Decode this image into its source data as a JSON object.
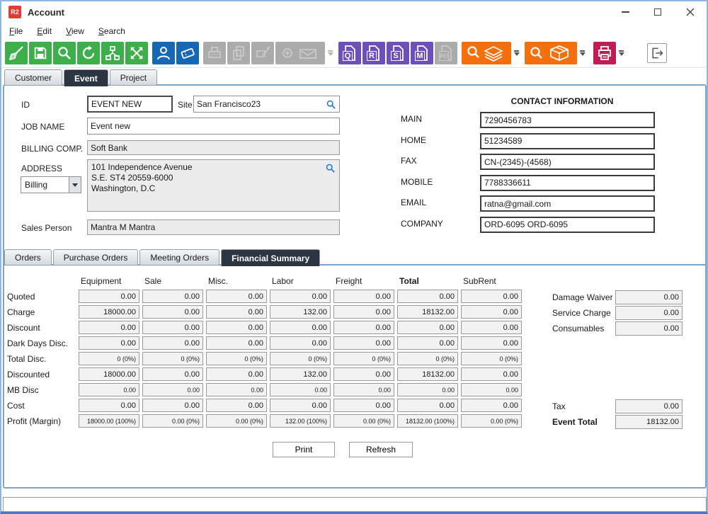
{
  "window": {
    "logo": "R2",
    "title": "Account"
  },
  "menu": {
    "items": [
      "File",
      "Edit",
      "View",
      "Search"
    ]
  },
  "toolbar": {
    "doc_letters": {
      "q": "Q",
      "r": "R",
      "s": "S",
      "m": "M",
      "po": "PO"
    },
    "icons": [
      "sweep",
      "save",
      "search",
      "refresh",
      "hierarchy",
      "expand",
      "user",
      "ticket",
      "fax",
      "copy",
      "sign",
      "add-mail",
      "quote-doc",
      "reservation-doc",
      "show-doc",
      "meeting-doc",
      "po-doc",
      "search-stock",
      "search-package",
      "print",
      "exit"
    ]
  },
  "tabs": {
    "items": [
      "Customer",
      "Event",
      "Project"
    ],
    "active": "Event"
  },
  "form": {
    "id": {
      "label": "ID",
      "value": "EVENT NEW"
    },
    "site": {
      "label": "Site",
      "value": "San Francisco23"
    },
    "job_name": {
      "label": "JOB NAME",
      "value": "Event new"
    },
    "billing_comp": {
      "label": "BILLING COMP.",
      "value": "Soft Bank"
    },
    "address": {
      "label": "ADDRESS",
      "type_value": "Billing",
      "lines": [
        "101 Independence Avenue",
        "S.E. ST4 20559-6000",
        "Washington, D.C"
      ]
    },
    "sales_person": {
      "label": "Sales Person",
      "value": "Mantra M Mantra"
    }
  },
  "contact": {
    "title": "CONTACT INFORMATION",
    "rows": [
      {
        "label": "MAIN",
        "value": "7290456783"
      },
      {
        "label": "HOME",
        "value": "51234589"
      },
      {
        "label": "FAX",
        "value": "CN-(2345)-(4568)"
      },
      {
        "label": "MOBILE",
        "value": "7788336611"
      },
      {
        "label": "EMAIL",
        "value": "ratna@gmail.com"
      },
      {
        "label": "COMPANY",
        "value": "ORD-6095 ORD-6095"
      }
    ]
  },
  "subtabs": {
    "items": [
      "Orders",
      "Purchase Orders",
      "Meeting Orders",
      "Financial Summary"
    ],
    "active": "Financial Summary"
  },
  "financial": {
    "columns": [
      "Equipment",
      "Sale",
      "Misc.",
      "Labor",
      "Freight",
      "Total",
      "SubRent"
    ],
    "bold_column": "Total",
    "rows": [
      {
        "label": "Quoted",
        "small": false,
        "values": [
          "0.00",
          "0.00",
          "0.00",
          "0.00",
          "0.00",
          "0.00",
          "0.00"
        ]
      },
      {
        "label": "Charge",
        "small": false,
        "values": [
          "18000.00",
          "0.00",
          "0.00",
          "132.00",
          "0.00",
          "18132.00",
          "0.00"
        ]
      },
      {
        "label": "Discount",
        "small": false,
        "values": [
          "0.00",
          "0.00",
          "0.00",
          "0.00",
          "0.00",
          "0.00",
          "0.00"
        ]
      },
      {
        "label": "Dark Days Disc.",
        "small": false,
        "values": [
          "0.00",
          "0.00",
          "0.00",
          "0.00",
          "0.00",
          "0.00",
          "0.00"
        ]
      },
      {
        "label": "Total Disc.",
        "small": true,
        "values": [
          "0 (0%)",
          "0 (0%)",
          "0 (0%)",
          "0 (0%)",
          "0 (0%)",
          "0 (0%)",
          "0 (0%)"
        ]
      },
      {
        "label": "Discounted",
        "small": false,
        "values": [
          "18000.00",
          "0.00",
          "0.00",
          "132.00",
          "0.00",
          "18132.00",
          "0.00"
        ]
      },
      {
        "label": "MB Disc",
        "small": true,
        "values": [
          "0.00",
          "0.00",
          "0.00",
          "0.00",
          "0.00",
          "0.00",
          "0.00"
        ]
      },
      {
        "label": "Cost",
        "small": false,
        "values": [
          "0.00",
          "0.00",
          "0.00",
          "0.00",
          "0.00",
          "0.00",
          "0.00"
        ]
      },
      {
        "label": "Profit (Margin)",
        "small": true,
        "values": [
          "18000.00 (100%)",
          "0.00 (0%)",
          "0.00 (0%)",
          "132.00 (100%)",
          "0.00 (0%)",
          "18132.00 (100%)",
          "0.00 (0%)"
        ]
      }
    ],
    "extras": [
      {
        "label": "Damage Waiver",
        "value": "0.00"
      },
      {
        "label": "Service Charge",
        "value": "0.00"
      },
      {
        "label": "Consumables",
        "value": "0.00"
      }
    ],
    "totals": [
      {
        "label": "Tax",
        "value": "0.00",
        "bold": false
      },
      {
        "label": "Event Total",
        "value": "18132.00",
        "bold": true
      }
    ],
    "buttons": {
      "print": "Print",
      "refresh": "Refresh"
    }
  },
  "colors": {
    "green": "#3cae4a",
    "blue": "#1668b6",
    "purple": "#6a50b8",
    "orange": "#f4700c",
    "crimson": "#c01d52",
    "disabled_gray": "#ababab",
    "active_tab": "#2c3542",
    "panel_border": "#7aa5cf",
    "logo_red": "#e03c31",
    "search_icon_blue": "#1a73d1"
  }
}
